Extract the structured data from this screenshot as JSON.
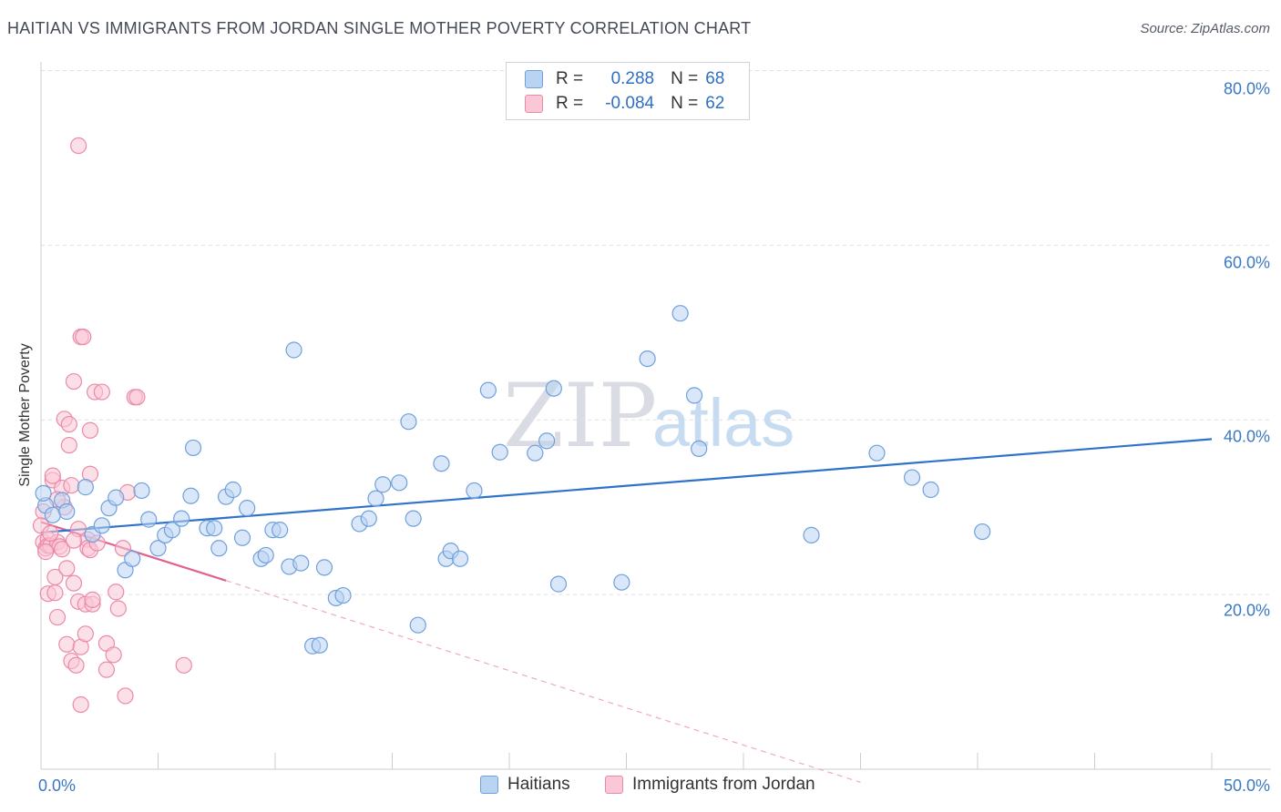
{
  "title": "HAITIAN VS IMMIGRANTS FROM JORDAN SINGLE MOTHER POVERTY CORRELATION CHART",
  "source": "Source: ZipAtlas.com",
  "watermark": {
    "zip": "ZIP",
    "atlas": "atlas"
  },
  "legend": {
    "blue": {
      "r_label": "R =",
      "r_value": "0.288",
      "n_label": "N =",
      "n_value": "68"
    },
    "pink": {
      "r_label": "R =",
      "r_value": "-0.084",
      "n_label": "N =",
      "n_value": "62"
    }
  },
  "bottom_legend": {
    "blue": "Haitians",
    "pink": "Immigrants from Jordan"
  },
  "colors": {
    "blue_fill": "#b9d3f2",
    "blue_stroke": "#6fa0dc",
    "blue_line": "#2f72cc",
    "pink_fill": "#f9c7d6",
    "pink_stroke": "#eb8aa8",
    "pink_line": "#e0628f",
    "tick_text": "#3b78c4",
    "grid": "#dde1e6"
  },
  "chart_data": {
    "type": "scatter",
    "title": "HAITIAN VS IMMIGRANTS FROM JORDAN SINGLE MOTHER POVERTY CORRELATION CHART",
    "xlabel": "",
    "ylabel": "Single Mother Poverty",
    "xlim": [
      0,
      50
    ],
    "ylim": [
      0,
      80
    ],
    "x_tick_labels": [
      "0.0%",
      "50.0%"
    ],
    "y_ticks": [
      20,
      40,
      60,
      80
    ],
    "y_tick_labels": [
      "20.0%",
      "40.0%",
      "60.0%",
      "80.0%"
    ],
    "grid": true,
    "series": [
      {
        "name": "Haitians",
        "color": "#6fa0dc",
        "trend": {
          "x": [
            0,
            50
          ],
          "y": [
            27.1,
            37.8
          ],
          "style": "solid"
        },
        "points": [
          [
            0.2,
            30.2
          ],
          [
            0.5,
            29.1
          ],
          [
            0.9,
            30.8
          ],
          [
            1.1,
            29.5
          ],
          [
            1.9,
            32.3
          ],
          [
            2.2,
            26.9
          ],
          [
            2.6,
            27.9
          ],
          [
            2.9,
            29.9
          ],
          [
            3.2,
            31.1
          ],
          [
            3.6,
            22.8
          ],
          [
            3.9,
            24.1
          ],
          [
            4.3,
            31.9
          ],
          [
            4.6,
            28.6
          ],
          [
            5.0,
            25.3
          ],
          [
            5.3,
            26.8
          ],
          [
            5.6,
            27.4
          ],
          [
            6.0,
            28.7
          ],
          [
            6.4,
            31.3
          ],
          [
            6.5,
            36.8
          ],
          [
            7.1,
            27.6
          ],
          [
            7.4,
            27.6
          ],
          [
            7.6,
            25.3
          ],
          [
            7.9,
            31.2
          ],
          [
            8.2,
            32.0
          ],
          [
            8.6,
            26.5
          ],
          [
            8.8,
            29.9
          ],
          [
            9.4,
            24.1
          ],
          [
            9.6,
            24.5
          ],
          [
            9.9,
            27.4
          ],
          [
            10.2,
            27.4
          ],
          [
            10.6,
            23.2
          ],
          [
            10.8,
            48.0
          ],
          [
            11.1,
            23.6
          ],
          [
            11.6,
            14.1
          ],
          [
            11.9,
            14.2
          ],
          [
            12.1,
            23.1
          ],
          [
            12.6,
            19.6
          ],
          [
            12.9,
            19.9
          ],
          [
            13.6,
            28.1
          ],
          [
            14.0,
            28.7
          ],
          [
            14.3,
            31.0
          ],
          [
            14.6,
            32.6
          ],
          [
            15.3,
            32.8
          ],
          [
            15.7,
            39.8
          ],
          [
            15.9,
            28.7
          ],
          [
            16.1,
            16.5
          ],
          [
            17.1,
            35.0
          ],
          [
            17.3,
            24.1
          ],
          [
            17.5,
            25.0
          ],
          [
            17.9,
            24.1
          ],
          [
            18.5,
            31.9
          ],
          [
            19.1,
            43.4
          ],
          [
            19.6,
            36.3
          ],
          [
            21.1,
            36.2
          ],
          [
            21.6,
            37.6
          ],
          [
            21.9,
            43.6
          ],
          [
            22.1,
            21.2
          ],
          [
            24.8,
            21.4
          ],
          [
            25.9,
            47.0
          ],
          [
            27.3,
            52.2
          ],
          [
            27.9,
            42.8
          ],
          [
            28.1,
            36.7
          ],
          [
            32.9,
            26.8
          ],
          [
            35.7,
            36.2
          ],
          [
            37.2,
            33.4
          ],
          [
            38.0,
            32.0
          ],
          [
            40.2,
            27.2
          ],
          [
            0.1,
            31.6
          ]
        ]
      },
      {
        "name": "Immigrants from Jordan",
        "color": "#eb8aa8",
        "trend": {
          "x": [
            0,
            7.9
          ],
          "y": [
            28.3,
            21.6
          ],
          "style": "solid",
          "extended_to": {
            "x": 35,
            "y": -1.5
          },
          "extended_style": "dashed"
        },
        "points": [
          [
            0.1,
            29.5
          ],
          [
            0.1,
            26.0
          ],
          [
            0.2,
            25.3
          ],
          [
            0.3,
            26.3
          ],
          [
            0.3,
            25.6
          ],
          [
            0.4,
            25.6
          ],
          [
            0.3,
            20.1
          ],
          [
            0.5,
            33.1
          ],
          [
            0.5,
            33.6
          ],
          [
            0.6,
            22.0
          ],
          [
            0.6,
            20.2
          ],
          [
            0.7,
            17.4
          ],
          [
            0.7,
            26.0
          ],
          [
            0.8,
            25.5
          ],
          [
            0.9,
            25.2
          ],
          [
            0.9,
            32.2
          ],
          [
            1.0,
            40.1
          ],
          [
            1.0,
            30.0
          ],
          [
            1.1,
            14.3
          ],
          [
            1.1,
            23.0
          ],
          [
            1.2,
            37.1
          ],
          [
            1.2,
            39.5
          ],
          [
            1.3,
            12.4
          ],
          [
            1.3,
            32.5
          ],
          [
            1.4,
            21.3
          ],
          [
            1.4,
            44.4
          ],
          [
            1.5,
            11.9
          ],
          [
            1.6,
            19.2
          ],
          [
            1.6,
            27.5
          ],
          [
            1.7,
            14.0
          ],
          [
            1.6,
            71.4
          ],
          [
            1.7,
            7.4
          ],
          [
            1.7,
            49.5
          ],
          [
            1.8,
            49.5
          ],
          [
            1.9,
            18.9
          ],
          [
            1.9,
            15.5
          ],
          [
            2.0,
            26.3
          ],
          [
            2.0,
            25.3
          ],
          [
            2.1,
            25.1
          ],
          [
            2.1,
            38.8
          ],
          [
            2.1,
            33.8
          ],
          [
            2.2,
            18.9
          ],
          [
            2.2,
            19.4
          ],
          [
            2.3,
            43.2
          ],
          [
            2.6,
            43.2
          ],
          [
            2.8,
            14.4
          ],
          [
            2.8,
            11.4
          ],
          [
            3.1,
            13.1
          ],
          [
            3.2,
            20.3
          ],
          [
            3.3,
            18.4
          ],
          [
            3.5,
            25.3
          ],
          [
            3.6,
            8.4
          ],
          [
            3.7,
            31.7
          ],
          [
            4.0,
            42.6
          ],
          [
            4.1,
            42.6
          ],
          [
            6.1,
            11.9
          ],
          [
            0.0,
            27.9
          ],
          [
            0.2,
            24.9
          ],
          [
            0.4,
            27.0
          ],
          [
            0.7,
            30.9
          ],
          [
            1.4,
            26.2
          ],
          [
            2.4,
            25.9
          ]
        ]
      }
    ]
  }
}
